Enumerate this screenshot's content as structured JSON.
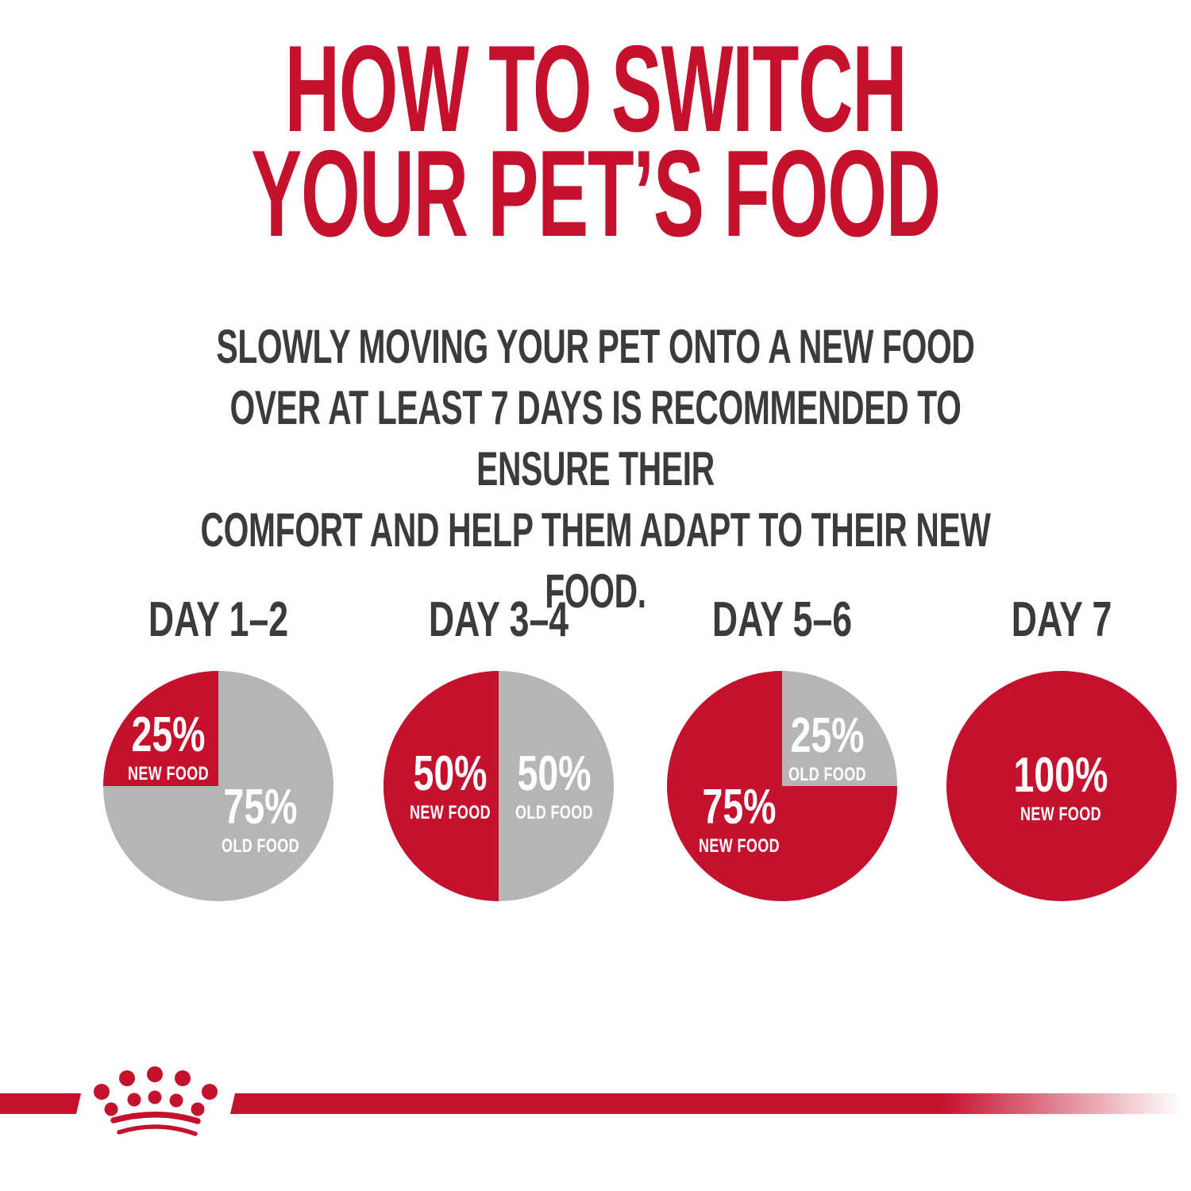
{
  "title": {
    "lines": [
      "HOW TO SWITCH",
      "YOUR PET’S FOOD"
    ]
  },
  "subtitle": {
    "lines": [
      "SLOWLY MOVING YOUR PET ONTO A NEW FOOD",
      "OVER AT LEAST 7 DAYS IS RECOMMENDED TO ENSURE THEIR",
      "COMFORT AND HELP THEM ADAPT TO THEIR NEW FOOD."
    ]
  },
  "colors": {
    "brand_red": "#C5102E",
    "old_food_gray": "#B4B6B5",
    "text_dark": "#3B3B3B",
    "label_white": "#FFFFFF"
  },
  "chart_data": {
    "type": "pie",
    "title": "HOW TO SWITCH YOUR PET’S FOOD",
    "legend_position": "inside-slices",
    "charts": [
      {
        "label": "DAY 1–2",
        "slices": [
          {
            "label": "NEW FOOD",
            "value": 25,
            "value_label": "25%",
            "caption": "NEW FOOD",
            "color": "#C5102E"
          },
          {
            "label": "OLD FOOD",
            "value": 75,
            "value_label": "75%",
            "caption": "OLD FOOD",
            "color": "#B4B6B5"
          }
        ]
      },
      {
        "label": "DAY 3–4",
        "slices": [
          {
            "label": "NEW FOOD",
            "value": 50,
            "value_label": "50%",
            "caption": "NEW FOOD",
            "color": "#C5102E"
          },
          {
            "label": "OLD FOOD",
            "value": 50,
            "value_label": "50%",
            "caption": "OLD FOOD",
            "color": "#B4B6B5"
          }
        ]
      },
      {
        "label": "DAY 5–6",
        "slices": [
          {
            "label": "NEW FOOD",
            "value": 75,
            "value_label": "75%",
            "caption": "NEW FOOD",
            "color": "#C5102E"
          },
          {
            "label": "OLD FOOD",
            "value": 25,
            "value_label": "25%",
            "caption": "OLD FOOD",
            "color": "#B4B6B5"
          }
        ]
      },
      {
        "label": "DAY 7",
        "slices": [
          {
            "label": "NEW FOOD",
            "value": 100,
            "value_label": "100%",
            "caption": "NEW FOOD",
            "color": "#C5102E"
          }
        ]
      }
    ]
  },
  "footer": {
    "logo": "royal-canin-crown"
  }
}
